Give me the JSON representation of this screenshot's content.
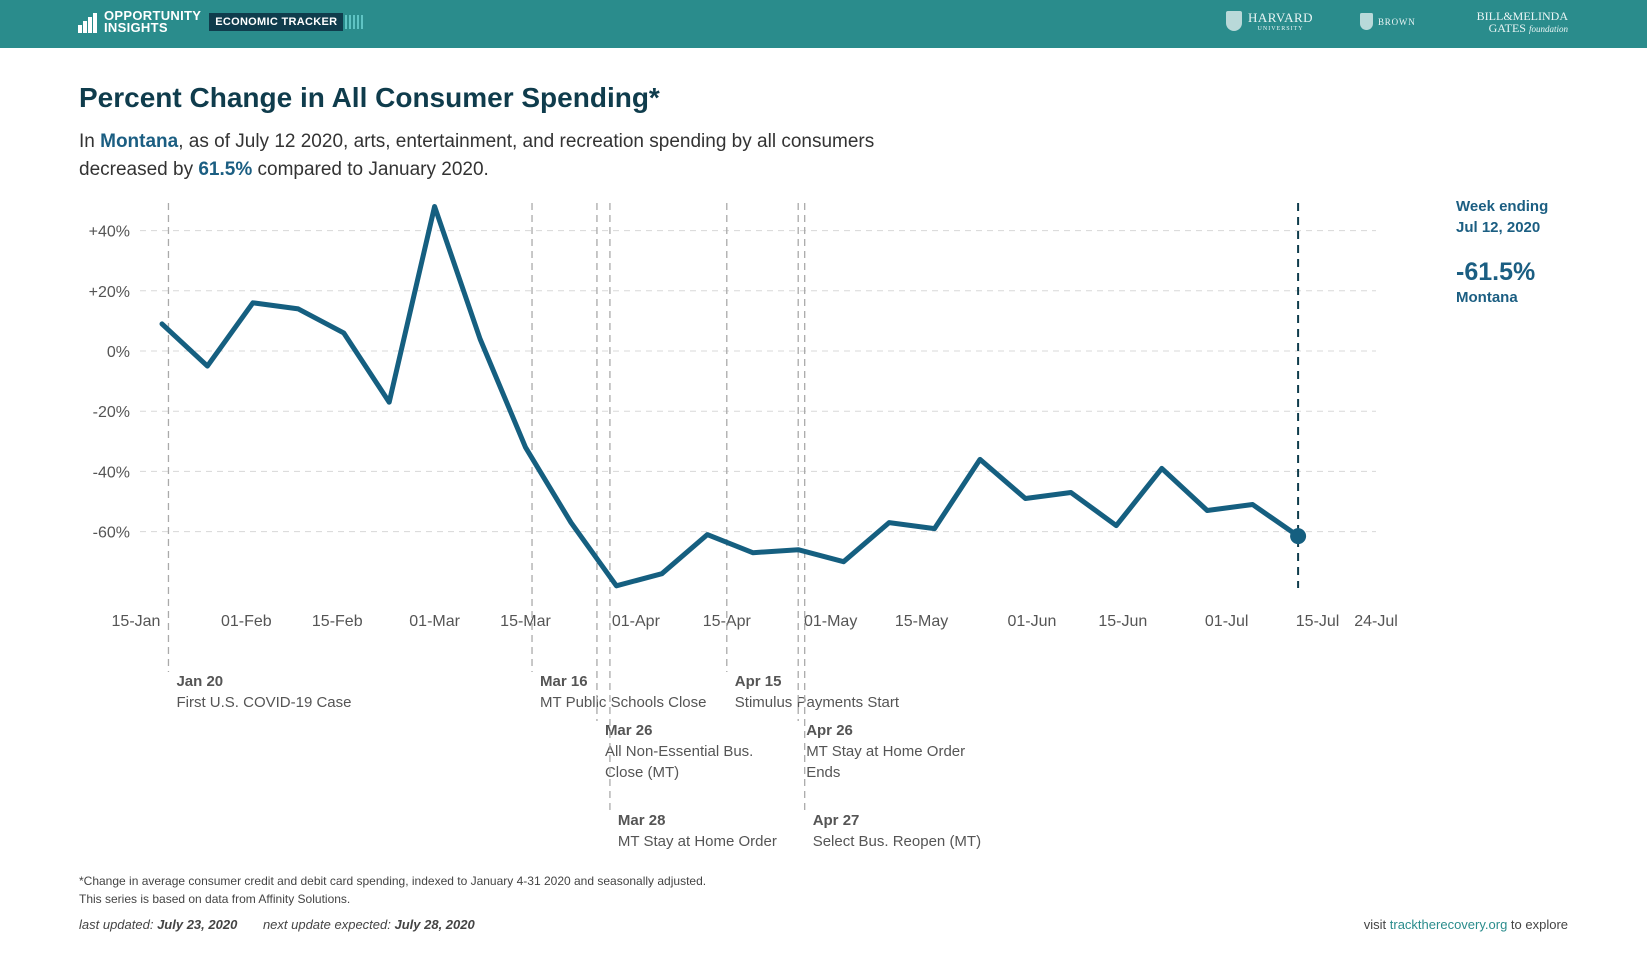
{
  "header": {
    "brand_line1": "OPPORTUNITY",
    "brand_line2": "INSIGHTS",
    "tracker_label": "ECONOMIC TRACKER",
    "partners": {
      "harvard": "HARVARD",
      "harvard_sub": "UNIVERSITY",
      "brown": "BROWN",
      "gates_line1": "BILL&MELINDA",
      "gates_line2": "GATES",
      "gates_sub": "foundation"
    }
  },
  "title": "Percent Change in All Consumer Spending*",
  "subtitle": {
    "p1": "In ",
    "state": "Montana",
    "p2": ", as of July 12 2020, arts, entertainment, and recreation spending by all consumers decreased by ",
    "pct": "61.5%",
    "p3": " compared to January 2020."
  },
  "side_panel": {
    "week_line1": "Week ending",
    "week_line2": "Jul 12, 2020",
    "value": "-61.5%",
    "state": "Montana"
  },
  "colors": {
    "line": "#155f80",
    "header_bg": "#2a8c8c",
    "title": "#0f3c4c"
  },
  "chart_data": {
    "type": "line",
    "title": "Percent Change in All Consumer Spending*",
    "x_domain_days": [
      0,
      191
    ],
    "ylim": [
      -80,
      50
    ],
    "yticks": [
      {
        "value": 40,
        "label": "+40%"
      },
      {
        "value": 20,
        "label": "+20%"
      },
      {
        "value": 0,
        "label": "0%"
      },
      {
        "value": -20,
        "label": "-20%"
      },
      {
        "value": -40,
        "label": "-40%"
      },
      {
        "value": -60,
        "label": "-60%"
      }
    ],
    "xticks": [
      {
        "day": 0,
        "label": "15-Jan"
      },
      {
        "day": 17,
        "label": "01-Feb"
      },
      {
        "day": 31,
        "label": "15-Feb"
      },
      {
        "day": 46,
        "label": "01-Mar"
      },
      {
        "day": 60,
        "label": "15-Mar"
      },
      {
        "day": 77,
        "label": "01-Apr"
      },
      {
        "day": 91,
        "label": "15-Apr"
      },
      {
        "day": 107,
        "label": "01-May"
      },
      {
        "day": 121,
        "label": "15-May"
      },
      {
        "day": 138,
        "label": "01-Jun"
      },
      {
        "day": 152,
        "label": "15-Jun"
      },
      {
        "day": 168,
        "label": "01-Jul"
      },
      {
        "day": 182,
        "label": "15-Jul"
      },
      {
        "day": 191,
        "label": "24-Jul"
      }
    ],
    "series": [
      {
        "name": "Montana",
        "points": [
          {
            "day": 4,
            "value": 9
          },
          {
            "day": 11,
            "value": -5
          },
          {
            "day": 18,
            "value": 16
          },
          {
            "day": 25,
            "value": 14
          },
          {
            "day": 32,
            "value": 6
          },
          {
            "day": 39,
            "value": -17
          },
          {
            "day": 46,
            "value": 48
          },
          {
            "day": 53,
            "value": 4
          },
          {
            "day": 60,
            "value": -32
          },
          {
            "day": 67,
            "value": -57
          },
          {
            "day": 74,
            "value": -78
          },
          {
            "day": 81,
            "value": -74
          },
          {
            "day": 88,
            "value": -61
          },
          {
            "day": 95,
            "value": -67
          },
          {
            "day": 102,
            "value": -66
          },
          {
            "day": 109,
            "value": -70
          },
          {
            "day": 116,
            "value": -57
          },
          {
            "day": 123,
            "value": -59
          },
          {
            "day": 130,
            "value": -36
          },
          {
            "day": 137,
            "value": -49
          },
          {
            "day": 144,
            "value": -47
          },
          {
            "day": 151,
            "value": -58
          },
          {
            "day": 158,
            "value": -39
          },
          {
            "day": 165,
            "value": -53
          },
          {
            "day": 172,
            "value": -51
          },
          {
            "day": 179,
            "value": -61.5
          }
        ]
      }
    ],
    "current_marker_day": 179,
    "events": [
      {
        "day": 5,
        "date": "Jan 20",
        "text": [
          "First U.S. COVID-19 Case"
        ],
        "tier": 1
      },
      {
        "day": 61,
        "date": "Mar 16",
        "text": [
          "MT Public Schools Close"
        ],
        "tier": 1
      },
      {
        "day": 71,
        "date": "Mar 26",
        "text": [
          "All Non-Essential Bus.",
          "Close (MT)"
        ],
        "tier": 2
      },
      {
        "day": 73,
        "date": "Mar 28",
        "text": [
          "MT Stay at Home Order"
        ],
        "tier": 3
      },
      {
        "day": 91,
        "date": "Apr 15",
        "text": [
          "Stimulus Payments Start"
        ],
        "tier": 1
      },
      {
        "day": 102,
        "date": "Apr 26",
        "text": [
          "MT Stay at Home Order",
          "Ends"
        ],
        "tier": 2
      },
      {
        "day": 103,
        "date": "Apr 27",
        "text": [
          "Select Bus. Reopen (MT)"
        ],
        "tier": 3
      }
    ]
  },
  "footnote": {
    "line1": "*Change in average consumer credit and debit card spending, indexed to January 4-31 2020 and seasonally adjusted.",
    "line2": "This series is based on data from Affinity Solutions."
  },
  "updated": {
    "last_label": "last updated:",
    "last_date": "July 23, 2020",
    "next_label": "next update expected:",
    "next_date": "July 28, 2020"
  },
  "visit": {
    "prefix": "visit ",
    "link": "tracktherecovery.org",
    "suffix": " to explore"
  }
}
